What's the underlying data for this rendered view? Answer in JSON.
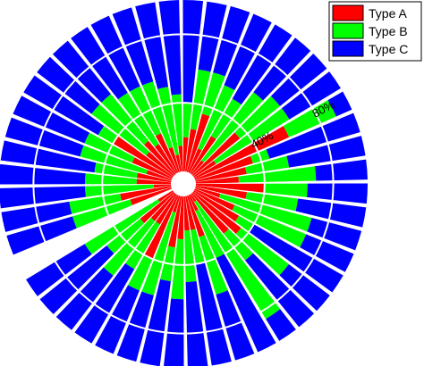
{
  "chart_data": {
    "type": "stacked-polar-bar",
    "title": "",
    "radial_axis": {
      "min": 0,
      "max": 100,
      "tick_labels": [
        "40%",
        "80%"
      ],
      "tick_values": [
        40,
        80
      ],
      "grid": true
    },
    "legend": {
      "placement": "top-right"
    },
    "series": [
      {
        "name": "Type A",
        "color": "#ff0000",
        "values": [
          10,
          25,
          20,
          20,
          25,
          30,
          10,
          40,
          20,
          20,
          25,
          10,
          25,
          30,
          10,
          20,
          20,
          15,
          25,
          40,
          20,
          25,
          20,
          25,
          15,
          10,
          15,
          20,
          25,
          35,
          15,
          25,
          10,
          35,
          15,
          60,
          35,
          30,
          25,
          40,
          30,
          15,
          25,
          30,
          35,
          30,
          5,
          10
        ]
      },
      {
        "name": "Type B",
        "color": "#00ff00",
        "values": [
          50,
          35,
          20,
          30,
          35,
          20,
          50,
          20,
          30,
          40,
          25,
          50,
          35,
          30,
          40,
          30,
          25,
          40,
          30,
          10,
          40,
          35,
          35,
          30,
          40,
          40,
          30,
          20,
          35,
          25,
          40,
          25,
          50,
          30,
          50,
          30,
          10,
          25,
          45,
          25,
          30,
          55,
          45,
          10,
          35,
          20,
          80,
          30
        ]
      },
      {
        "name": "Type C",
        "color": "#0000ff",
        "values": [
          40,
          40,
          60,
          50,
          40,
          50,
          40,
          40,
          50,
          40,
          50,
          40,
          40,
          40,
          50,
          50,
          55,
          45,
          45,
          50,
          40,
          40,
          45,
          45,
          45,
          50,
          55,
          60,
          40,
          40,
          45,
          50,
          40,
          35,
          35,
          10,
          55,
          45,
          30,
          35,
          40,
          30,
          30,
          60,
          30,
          50,
          15,
          60
        ]
      }
    ]
  },
  "legend": {
    "items": [
      {
        "label": "Type A",
        "color": "#ff0000"
      },
      {
        "label": "Type B",
        "color": "#00ff00"
      },
      {
        "label": "Type C",
        "color": "#0000ff"
      }
    ]
  }
}
